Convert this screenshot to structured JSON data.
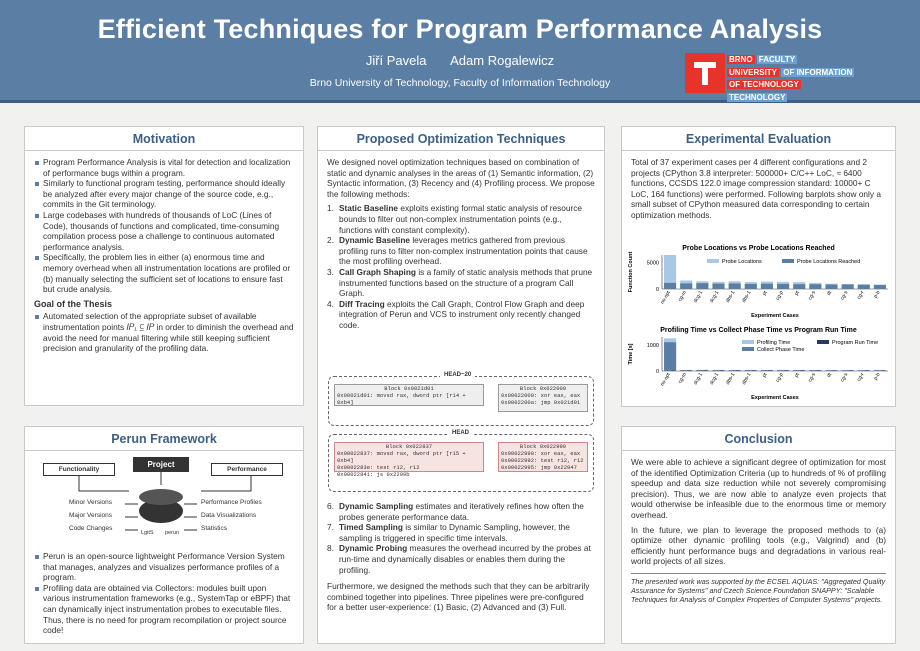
{
  "header": {
    "title": "Efficient Techniques for Program Performance Analysis",
    "authors": [
      "Jiří Pavela",
      "Adam Rogalewicz"
    ],
    "affiliation": "Brno University of Technology, Faculty of Information Technology",
    "logo": {
      "l1a": "BRNO",
      "l1b": "FACULTY",
      "l2a": "UNIVERSITY",
      "l2b": "OF INFORMATION",
      "l3a": "OF TECHNOLOGY",
      "l3b": "TECHNOLOGY"
    },
    "colors": {
      "banner": "#5b7ea5",
      "accent": "#3d5f86",
      "logo_red": "#e8332a",
      "logo_blue": "#6aa1d5"
    }
  },
  "motivation": {
    "title": "Motivation",
    "bullets": [
      "Program Performance Analysis is vital for detection and localization of performance bugs within a program.",
      "Similarly to functional program testing, performance should ideally be analyzed after every major change of the source code, e.g., commits in the Git terminology.",
      "Large codebases with hundreds of thousands of LoC (Lines of Code), thousands of functions and complicated, time-consuming compilation process pose a challenge to continuous automated performance analysis.",
      "Specifically, the problem lies in either (a) enormous time and memory overhead when all instrumentation locations are profiled or (b) manually selecting the sufficient set of locations to ensure fast but crude analysis."
    ],
    "goal_title": "Goal of the Thesis",
    "goal": "Automated selection of the appropriate subset of available instrumentation points 𝐼𝑃₁ ⊆ 𝐼𝑃 in order to diminish the overhead and avoid the need for manual filtering while still keeping sufficient precision and granularity of the profiling data."
  },
  "perun": {
    "title": "Perun Framework",
    "diagram": {
      "project": "Project",
      "functionality": "Functionality",
      "performance": "Performance",
      "left": [
        "Minor Versions",
        "Major Versions",
        "Code Changes"
      ],
      "right": [
        "Performance Profiles",
        "Data Visualizations",
        "Statistics"
      ],
      "icons": [
        "LgitS",
        "perun"
      ]
    },
    "bullets": [
      "Perun is an open-source lightweight Performance Version System that manages, analyzes and visualizes performance profiles of a program.",
      "Profiling data are obtained via Collectors: modules built upon various instrumentation frameworks (e.g., SystemTap or eBPF) that can dynamically inject instrumentation probes to executable files. Thus, there is no need for program recompilation or project source code!"
    ]
  },
  "techniques": {
    "title": "Proposed Optimization Techniques",
    "intro": "We designed novel optimization techniques based on combination of static and dynamic analyses in the areas of (1) Semantic information, (2) Syntactic information, (3) Recency and (4) Profiling process. We propose the following methods:",
    "items_a": [
      {
        "n": "1.",
        "name": "Static Baseline",
        "text": "exploits existing formal static analysis of resource bounds to filter out non-complex instrumentation points (e.g., functions with constant complexity)."
      },
      {
        "n": "2.",
        "name": "Dynamic Baseline",
        "text": "leverages metrics gathered from previous profiling runs to filter non-complex instrumentation points that cause the most profiling overhead."
      },
      {
        "n": "3.",
        "name": "Call Graph Shaping",
        "text": "is a family of static analysis methods that prune instrumented functions based on the structure of a program Call Graph."
      },
      {
        "n": "4.",
        "name": "Diff Tracing",
        "text": "exploits the Call Graph, Control Flow Graph and deep integration of Perun and VCS to instrument only recently changed code."
      }
    ],
    "diagram": {
      "head_old": "HEAD~20",
      "head": "HEAD",
      "block_a": "Block  0x0021d01",
      "block_b": "Block  0x022000",
      "code_a": "0x00021d01:  movsd rax, dword ptr [r14 + 0xb4]",
      "code_b1": "0x00022000:  xor eax,  eax",
      "code_b2": "0x0002200a:  jmp 0x021d01",
      "block_c": "Block  0x022837",
      "block_d": "Block  0x022990",
      "code_c1": "0x00022837:  movsd rax, dword ptr [r15 + 0xb4]",
      "code_c2": "0x0002283e:  test   r12, r12",
      "code_c3": "0x00022841:  js       0x2299b",
      "code_d1": "0x00022990:  xor eax,  eax",
      "code_d2": "0x00022992:  test   r12, r12",
      "code_d3": "0x00022995:  jmp 0x22947"
    },
    "items_b": [
      {
        "n": "6.",
        "name": "Dynamic Sampling",
        "text": "estimates and iteratively refines how often the probes generate performance data."
      },
      {
        "n": "7.",
        "name": "Timed Sampling",
        "text": "is similar to Dynamic Sampling, however, the sampling is triggered in specific time intervals."
      },
      {
        "n": "8.",
        "name": "Dynamic Probing",
        "text": "measures the overhead incurred by the probes at run-time and dynamically disables or enables them during the profiling."
      }
    ],
    "outro": "Furthermore, we designed the methods such that they can be arbitrarily combined together into pipelines. Three pipelines were pre-configured for a better user-experience: (1) Basic, (2) Advanced and (3) Full."
  },
  "experimental": {
    "title": "Experimental Evaluation",
    "text": "Total of 37 experiment cases per 4 different configurations and 2 projects (CPython 3.8 interpreter: 500000+ C/C++ LoC, ≈ 6400 functions, CCSDS 122.0 image compression standard: 10000+ C LoC, 164 functions) were performed. Following barplots show only a small subset of CPython measured data corresponding to certain optimization methods."
  },
  "chart_data": [
    {
      "type": "bar",
      "title": "Probe Locations vs Probe Locations Reached",
      "xlabel": "Experiment Cases",
      "ylabel": "Function Count",
      "categories": [
        "no-opt",
        "cg-m",
        "dcg-1",
        "dcg-1",
        "dbs-1",
        "dbs-1",
        "pt",
        "cg-p",
        "pt",
        "cg-s",
        "dt",
        "cg-s",
        "cg-r",
        "p-b"
      ],
      "yticks": [
        "0",
        "5000"
      ],
      "ylim": [
        0,
        6400
      ],
      "series": [
        {
          "name": "Probe Locations",
          "color": "#a9c8e6",
          "values": [
            6400,
            1600,
            1450,
            1350,
            1450,
            1300,
            1400,
            1350,
            1300,
            1150,
            1000,
            950,
            900,
            850
          ]
        },
        {
          "name": "Probe Locations Reached",
          "color": "#5b7ea5",
          "values": [
            1150,
            1050,
            1100,
            1000,
            1050,
            950,
            1000,
            950,
            900,
            900,
            850,
            850,
            800,
            750
          ]
        }
      ],
      "legend": "top-right"
    },
    {
      "type": "bar",
      "title": "Profiling Time vs Collect Phase Time vs Program Run Time",
      "xlabel": "Experiment Cases",
      "ylabel": "Time [s]",
      "categories": [
        "no-opt",
        "cg-m",
        "dcg-1",
        "dcg-1",
        "dbs-1",
        "dbs-1",
        "pt",
        "cg-p",
        "pt",
        "cg-s",
        "dt",
        "cg-s",
        "cg-r",
        "p-b"
      ],
      "yticks": [
        "0",
        "1000"
      ],
      "ylim": [
        0,
        1300
      ],
      "series": [
        {
          "name": "Profiling Time",
          "color": "#a9c8e6",
          "values": [
            1250,
            40,
            45,
            40,
            40,
            40,
            40,
            40,
            40,
            40,
            35,
            35,
            35,
            35
          ]
        },
        {
          "name": "Collect Phase Time",
          "color": "#5b7ea5",
          "values": [
            1100,
            35,
            40,
            35,
            35,
            35,
            35,
            35,
            35,
            35,
            30,
            30,
            30,
            30
          ]
        },
        {
          "name": "Program Run Time",
          "color": "#273a66",
          "values": [
            15,
            15,
            15,
            15,
            15,
            15,
            15,
            15,
            15,
            15,
            15,
            15,
            15,
            15
          ]
        }
      ],
      "legend": "top-right"
    }
  ],
  "conclusion": {
    "title": "Conclusion",
    "p1": "We were able to achieve a significant degree of optimization for most of the identified Optimization Criteria (up to hundreds of % of profiling speedup and data size reduction while not severely compromising precision). Thus, we are now able to analyze even projects that would otherwise be infeasible due to the enormous time or memory overhead.",
    "p2": "In the future, we plan to leverage the proposed methods to (a) optimize other dynamic profiling tools (e.g., Valgrind) and (b) efficiently hunt performance bugs and degradations in various real-world projects of all sizes.",
    "footnote": "The presented work was supported by the ECSEL AQUAS: \"Aggregated Quality Assurance for Systems\" and Czech Science Foundation SNAPPY: \"Scalable Techniques for Analysis of Complex Properties of Computer Systems\" projects."
  }
}
